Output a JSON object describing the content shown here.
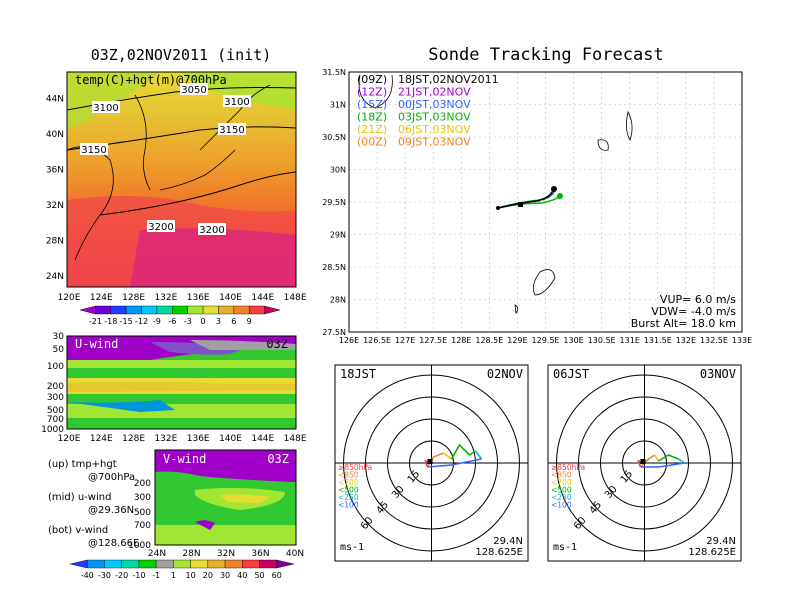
{
  "left_title": "03Z,02NOV2011 (init)",
  "right_title": "Sonde Tracking Forecast",
  "upper_panel": {
    "label": "temp(C)+hgt(m)@700hPa",
    "lon_ticks": [
      "120E",
      "124E",
      "128E",
      "132E",
      "136E",
      "140E",
      "144E",
      "148E"
    ],
    "lat_ticks": [
      "24N",
      "28N",
      "32N",
      "36N",
      "40N",
      "44N"
    ],
    "contours": [
      "3050",
      "3100",
      "3100",
      "3150",
      "3150",
      "3200",
      "3200"
    ]
  },
  "temp_colorbar": {
    "labels": [
      "-21",
      "-18",
      "-15",
      "-12",
      "-9",
      "-6",
      "-3",
      "0",
      "3",
      "6",
      "9"
    ],
    "colors": [
      "#a000c8",
      "#6e00dc",
      "#1e3cff",
      "#0096ff",
      "#00c8ff",
      "#00dca0",
      "#00d200",
      "#a0e632",
      "#e6dc32",
      "#e6af2d",
      "#f08228",
      "#fa3c3c",
      "#c80064"
    ]
  },
  "u_panel": {
    "label": "U-wind",
    "time": "03Z",
    "p_ticks": [
      "30",
      "50",
      "100",
      "200",
      "300",
      "500",
      "700",
      "1000"
    ],
    "lon_ticks": [
      "120E",
      "124E",
      "128E",
      "132E",
      "136E",
      "140E",
      "144E",
      "148E"
    ]
  },
  "v_panel": {
    "label": "V-wind",
    "time": "03Z",
    "p_ticks": [
      "200",
      "300",
      "500",
      "700",
      "1000"
    ],
    "lat_ticks": [
      "24N",
      "28N",
      "32N",
      "36N",
      "40N"
    ]
  },
  "legend_notes": [
    {
      "line1": "(up) tmp+hgt",
      "line2": "@700hPa"
    },
    {
      "line1": "(mid) u-wind",
      "line2": "@29.36N"
    },
    {
      "line1": "(bot) v-wind",
      "line2": "@128.66E"
    }
  ],
  "wind_colorbar": {
    "labels": [
      "-40",
      "-30",
      "-20",
      "-10",
      "-1",
      "1",
      "10",
      "20",
      "30",
      "40",
      "50",
      "60"
    ],
    "colors": [
      "#1e3cff",
      "#0096ff",
      "#00c8ff",
      "#00dca0",
      "#00d200",
      "#a0a0a0",
      "#a0e632",
      "#e6dc32",
      "#e6af2d",
      "#f08228",
      "#fa3c3c",
      "#c80064",
      "#7800a0"
    ]
  },
  "track_map": {
    "x_ticks": [
      "126E",
      "126.5E",
      "127E",
      "127.5E",
      "128E",
      "128.5E",
      "129E",
      "129.5E",
      "130E",
      "130.5E",
      "131E",
      "131.5E",
      "132E",
      "132.5E",
      "133E"
    ],
    "y_ticks": [
      "27.5N",
      "28N",
      "28.5N",
      "29N",
      "29.5N",
      "30N",
      "30.5N",
      "31N",
      "31.5N"
    ],
    "legend": [
      {
        "code": "(09Z)",
        "text": "18JST,02NOV2011",
        "color": "#000000"
      },
      {
        "code": "(12Z)",
        "text": "21JST,02NOV",
        "color": "#a000c8"
      },
      {
        "code": "(15Z)",
        "text": "00JST,03NOV",
        "color": "#3264ff"
      },
      {
        "code": "(18Z)",
        "text": "03JST,03NOV",
        "color": "#00b400"
      },
      {
        "code": "(21Z)",
        "text": "06JST,03NOV",
        "color": "#e6c800"
      },
      {
        "code": "(00Z)",
        "text": "09JST,03NOV",
        "color": "#f08228"
      }
    ],
    "params": [
      "VUP= 6.0 m/s",
      "VDW= -4.0 m/s",
      "Burst Alt= 18.0 km"
    ]
  },
  "hodographs": [
    {
      "time": "18JST",
      "date": "02NOV",
      "lat": "29.4N",
      "lon": "128.625E",
      "unit": "ms-1",
      "rings": [
        "15",
        "30",
        "45",
        "60"
      ]
    },
    {
      "time": "06JST",
      "date": "03NOV",
      "lat": "29.4N",
      "lon": "128.625E",
      "unit": "ms-1",
      "rings": [
        "15",
        "30",
        "45",
        "60"
      ]
    }
  ],
  "hodo_levels": [
    {
      "label": "≥850hPa",
      "color": "#fa3c3c"
    },
    {
      "label": "<850",
      "color": "#f08228"
    },
    {
      "label": "<700",
      "color": "#e6c800"
    },
    {
      "label": "<500",
      "color": "#00b400"
    },
    {
      "label": "<250",
      "color": "#00b4dc"
    },
    {
      "label": "<100",
      "color": "#3264ff"
    }
  ]
}
